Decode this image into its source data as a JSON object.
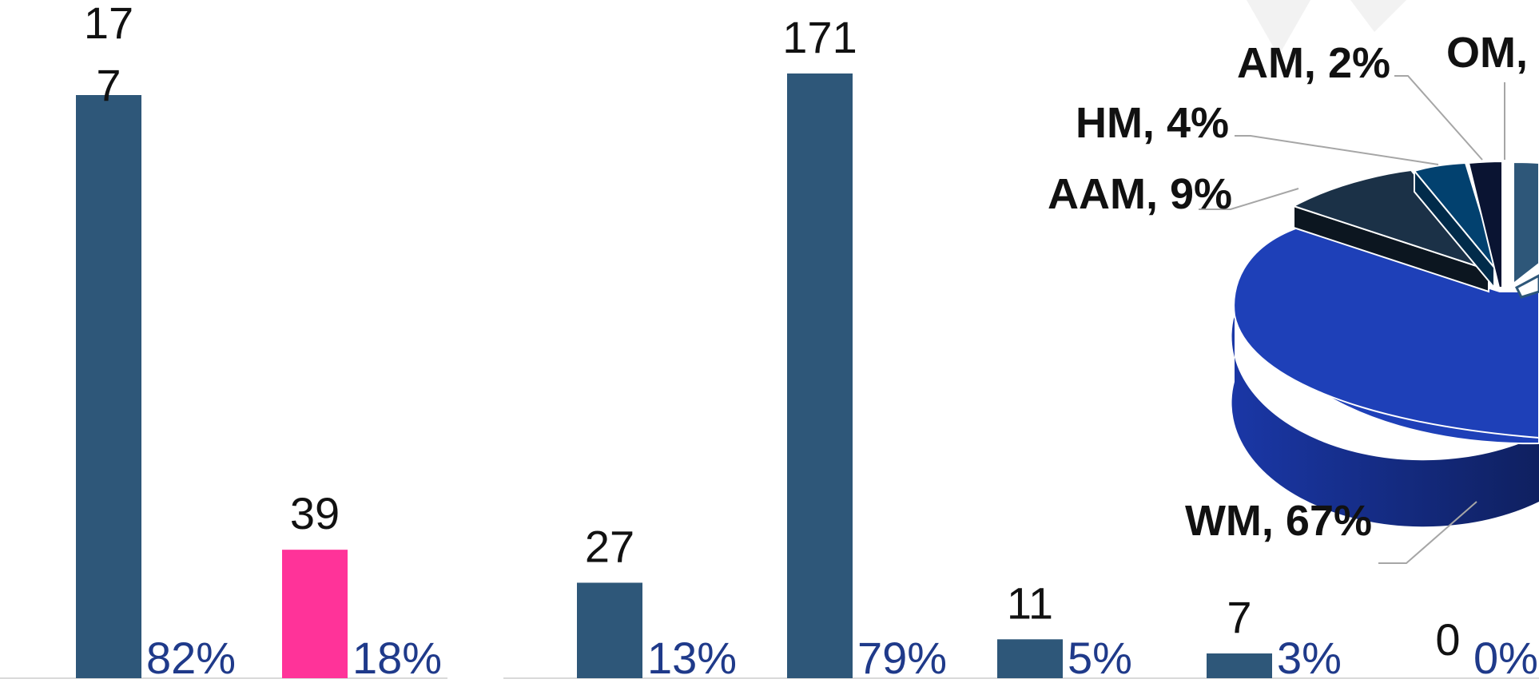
{
  "colors": {
    "bar_blue": "#2e5779",
    "bar_pink": "#ff3399",
    "pct_text": "#1f3a8a",
    "pie_wm": "#1e40b8",
    "pie_aam": "#1b3147",
    "pie_hm": "#02416f",
    "pie_am": "#0a1432",
    "pie_om": "#2e5779"
  },
  "chart_data": [
    {
      "type": "bar",
      "categories": [
        "",
        ""
      ],
      "values": [
        177,
        39
      ],
      "value_labels": [
        "17\n7",
        "39"
      ],
      "percent_labels": [
        "82%",
        "18%"
      ],
      "bar_colors": [
        "#2e5779",
        "#ff3399"
      ]
    },
    {
      "type": "bar",
      "categories": [
        "",
        "",
        "",
        "",
        ""
      ],
      "values": [
        27,
        171,
        11,
        7,
        0
      ],
      "value_labels": [
        "27",
        "171",
        "11",
        "7",
        "0"
      ],
      "percent_labels": [
        "13%",
        "79%",
        "5%",
        "3%",
        "0%"
      ],
      "bar_colors": [
        "#2e5779",
        "#2e5779",
        "#2e5779",
        "#2e5779",
        "#2e5779"
      ]
    },
    {
      "type": "pie",
      "slices": [
        {
          "label": "WM, 67%",
          "value": 67
        },
        {
          "label": "AAM, 9%",
          "value": 9
        },
        {
          "label": "HM, 4%",
          "value": 4
        },
        {
          "label": "AM, 2%",
          "value": 2
        },
        {
          "label": "OM,",
          "value": null
        }
      ]
    }
  ]
}
